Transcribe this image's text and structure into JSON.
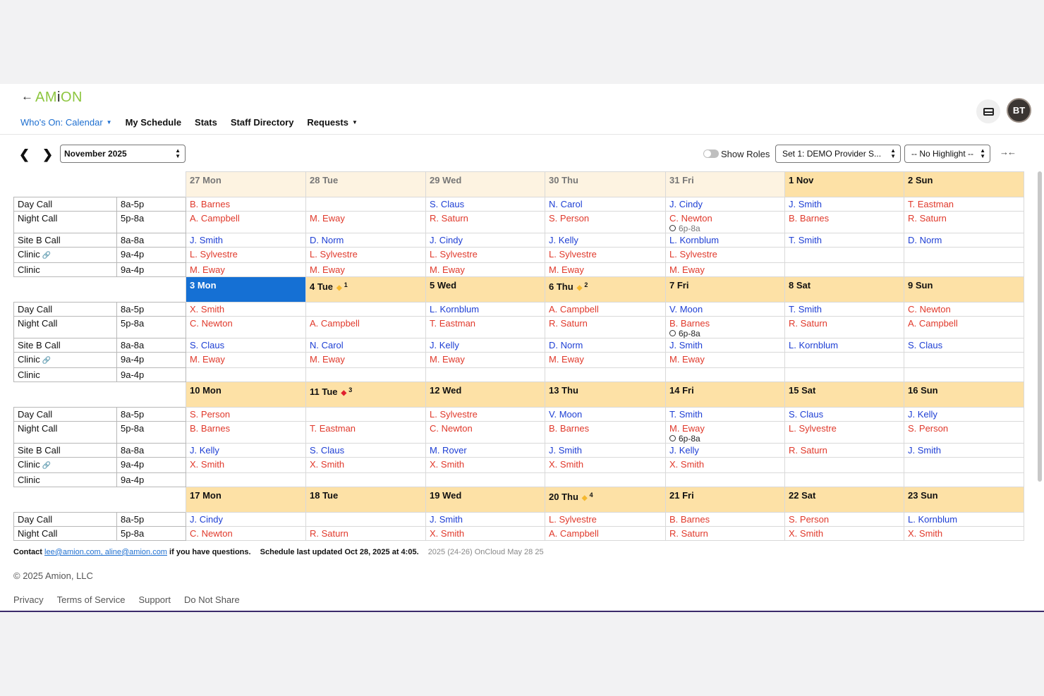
{
  "app": {
    "back_arrow": "←",
    "logo_a": "AM",
    "logo_i": "i",
    "logo_b": "ON",
    "avatar_initials": "BT",
    "colors": {
      "accent": "#1e6fd0",
      "date_header": "#fde1a6",
      "today": "#1570d4",
      "red_name": "#e0392b",
      "blue_name": "#1e3fd4",
      "logo": "#8dc63f"
    }
  },
  "nav": {
    "items": [
      {
        "label": "Who's On: Calendar",
        "caret": "▼",
        "active": true
      },
      {
        "label": "My Schedule"
      },
      {
        "label": "Stats"
      },
      {
        "label": "Staff Directory"
      },
      {
        "label": "Requests",
        "caret": "▼"
      }
    ],
    "icons": [
      "card-icon",
      "avatar"
    ]
  },
  "toolbar": {
    "prev": "‹",
    "next": "›",
    "month": "November 2025",
    "show_roles_label": "Show Roles",
    "show_roles_on": false,
    "set_select": "Set 1: DEMO Provider S...",
    "highlight_select": "-- No Highlight --",
    "collapse_icon": "→←"
  },
  "calendar": {
    "weeks": [
      {
        "days": [
          {
            "label": "27 Mon",
            "faded": true
          },
          {
            "label": "28 Tue",
            "faded": true
          },
          {
            "label": "29 Wed",
            "faded": true
          },
          {
            "label": "30 Thu",
            "faded": true
          },
          {
            "label": "31 Fri",
            "faded": true
          },
          {
            "label": "1 Nov"
          },
          {
            "label": "2 Sun"
          }
        ],
        "rows": [
          {
            "label": "Day Call",
            "time": "8a-5p",
            "cells": [
              {
                "n": "B. Barnes",
                "c": "red"
              },
              {
                "n": ""
              },
              {
                "n": "S. Claus",
                "c": "blue"
              },
              {
                "n": "N. Carol",
                "c": "blue"
              },
              {
                "n": "J. Cindy",
                "c": "blue"
              },
              {
                "n": "J. Smith",
                "c": "blue"
              },
              {
                "n": "T. Eastman",
                "c": "red"
              }
            ]
          },
          {
            "label": "Night Call",
            "time": "5p-8a",
            "tall": true,
            "cells": [
              {
                "n": "A. Campbell",
                "c": "red"
              },
              {
                "n": "M. Eway",
                "c": "red"
              },
              {
                "n": "R. Saturn",
                "c": "red"
              },
              {
                "n": "S. Person",
                "c": "red"
              },
              {
                "n": "C. Newton",
                "c": "red",
                "note": "6p-8a",
                "note_faded": true
              },
              {
                "n": "B. Barnes",
                "c": "red"
              },
              {
                "n": "R. Saturn",
                "c": "red"
              }
            ]
          },
          {
            "label": "Site B Call",
            "time": "8a-8a",
            "cells": [
              {
                "n": "J. Smith",
                "c": "blue"
              },
              {
                "n": "D. Norm",
                "c": "blue"
              },
              {
                "n": "J. Cindy",
                "c": "blue"
              },
              {
                "n": "J. Kelly",
                "c": "blue"
              },
              {
                "n": "L. Kornblum",
                "c": "blue"
              },
              {
                "n": "T. Smith",
                "c": "blue"
              },
              {
                "n": "D. Norm",
                "c": "blue"
              }
            ]
          },
          {
            "label": "Clinic",
            "time": "9a-4p",
            "link": true,
            "cells": [
              {
                "n": "L. Sylvestre",
                "c": "red"
              },
              {
                "n": "L. Sylvestre",
                "c": "red"
              },
              {
                "n": "L. Sylvestre",
                "c": "red"
              },
              {
                "n": "L. Sylvestre",
                "c": "red"
              },
              {
                "n": "L. Sylvestre",
                "c": "red"
              },
              {
                "n": ""
              },
              {
                "n": ""
              }
            ]
          },
          {
            "label": "Clinic",
            "time": "9a-4p",
            "cells": [
              {
                "n": "M. Eway",
                "c": "red"
              },
              {
                "n": "M. Eway",
                "c": "red"
              },
              {
                "n": "M. Eway",
                "c": "red"
              },
              {
                "n": "M. Eway",
                "c": "red"
              },
              {
                "n": "M. Eway",
                "c": "red"
              },
              {
                "n": ""
              },
              {
                "n": ""
              }
            ]
          }
        ]
      },
      {
        "days": [
          {
            "label": "3 Mon",
            "today": true
          },
          {
            "label": "4 Tue",
            "diamond": "yellow",
            "sup": "1"
          },
          {
            "label": "5 Wed"
          },
          {
            "label": "6 Thu",
            "diamond": "yellow",
            "sup": "2"
          },
          {
            "label": "7 Fri"
          },
          {
            "label": "8 Sat"
          },
          {
            "label": "9 Sun"
          }
        ],
        "rows": [
          {
            "label": "Day Call",
            "time": "8a-5p",
            "cells": [
              {
                "n": "X. Smith",
                "c": "red"
              },
              {
                "n": ""
              },
              {
                "n": "L. Kornblum",
                "c": "blue"
              },
              {
                "n": "A. Campbell",
                "c": "red"
              },
              {
                "n": "V. Moon",
                "c": "blue"
              },
              {
                "n": "T. Smith",
                "c": "blue"
              },
              {
                "n": "C. Newton",
                "c": "red"
              }
            ]
          },
          {
            "label": "Night Call",
            "time": "5p-8a",
            "tall": true,
            "cells": [
              {
                "n": "C. Newton",
                "c": "red"
              },
              {
                "n": "A. Campbell",
                "c": "red"
              },
              {
                "n": "T. Eastman",
                "c": "red"
              },
              {
                "n": "R. Saturn",
                "c": "red"
              },
              {
                "n": "B. Barnes",
                "c": "red",
                "note": "6p-8a"
              },
              {
                "n": "R. Saturn",
                "c": "red"
              },
              {
                "n": "A. Campbell",
                "c": "red"
              }
            ]
          },
          {
            "label": "Site B Call",
            "time": "8a-8a",
            "cells": [
              {
                "n": "S. Claus",
                "c": "blue"
              },
              {
                "n": "N. Carol",
                "c": "blue"
              },
              {
                "n": "J. Kelly",
                "c": "blue"
              },
              {
                "n": "D. Norm",
                "c": "blue"
              },
              {
                "n": "J. Smith",
                "c": "blue"
              },
              {
                "n": "L. Kornblum",
                "c": "blue"
              },
              {
                "n": "S. Claus",
                "c": "blue"
              }
            ]
          },
          {
            "label": "Clinic",
            "time": "9a-4p",
            "link": true,
            "cells": [
              {
                "n": "M. Eway",
                "c": "red"
              },
              {
                "n": "M. Eway",
                "c": "red"
              },
              {
                "n": "M. Eway",
                "c": "red"
              },
              {
                "n": "M. Eway",
                "c": "red"
              },
              {
                "n": "M. Eway",
                "c": "red"
              },
              {
                "n": ""
              },
              {
                "n": ""
              }
            ]
          },
          {
            "label": "Clinic",
            "time": "9a-4p",
            "cells": [
              {
                "n": ""
              },
              {
                "n": ""
              },
              {
                "n": ""
              },
              {
                "n": ""
              },
              {
                "n": ""
              },
              {
                "n": ""
              },
              {
                "n": ""
              }
            ]
          }
        ]
      },
      {
        "days": [
          {
            "label": "10 Mon"
          },
          {
            "label": "11 Tue",
            "diamond": "red",
            "sup": "3"
          },
          {
            "label": "12 Wed"
          },
          {
            "label": "13 Thu"
          },
          {
            "label": "14 Fri"
          },
          {
            "label": "15 Sat"
          },
          {
            "label": "16 Sun"
          }
        ],
        "rows": [
          {
            "label": "Day Call",
            "time": "8a-5p",
            "cells": [
              {
                "n": "S. Person",
                "c": "red"
              },
              {
                "n": ""
              },
              {
                "n": "L. Sylvestre",
                "c": "red"
              },
              {
                "n": "V. Moon",
                "c": "blue"
              },
              {
                "n": "T. Smith",
                "c": "blue"
              },
              {
                "n": "S. Claus",
                "c": "blue"
              },
              {
                "n": "J. Kelly",
                "c": "blue"
              }
            ]
          },
          {
            "label": "Night Call",
            "time": "5p-8a",
            "tall": true,
            "cells": [
              {
                "n": "B. Barnes",
                "c": "red"
              },
              {
                "n": "T. Eastman",
                "c": "red"
              },
              {
                "n": "C. Newton",
                "c": "red"
              },
              {
                "n": "B. Barnes",
                "c": "red"
              },
              {
                "n": "M. Eway",
                "c": "red",
                "note": "6p-8a"
              },
              {
                "n": "L. Sylvestre",
                "c": "red"
              },
              {
                "n": "S. Person",
                "c": "red"
              }
            ]
          },
          {
            "label": "Site B Call",
            "time": "8a-8a",
            "cells": [
              {
                "n": "J. Kelly",
                "c": "blue"
              },
              {
                "n": "S. Claus",
                "c": "blue"
              },
              {
                "n": "M. Rover",
                "c": "blue"
              },
              {
                "n": "J. Smith",
                "c": "blue"
              },
              {
                "n": "J. Kelly",
                "c": "blue"
              },
              {
                "n": "R. Saturn",
                "c": "red"
              },
              {
                "n": "J. Smith",
                "c": "blue"
              }
            ]
          },
          {
            "label": "Clinic",
            "time": "9a-4p",
            "link": true,
            "cells": [
              {
                "n": "X. Smith",
                "c": "red"
              },
              {
                "n": "X. Smith",
                "c": "red"
              },
              {
                "n": "X. Smith",
                "c": "red"
              },
              {
                "n": "X. Smith",
                "c": "red"
              },
              {
                "n": "X. Smith",
                "c": "red"
              },
              {
                "n": ""
              },
              {
                "n": ""
              }
            ]
          },
          {
            "label": "Clinic",
            "time": "9a-4p",
            "cells": [
              {
                "n": ""
              },
              {
                "n": ""
              },
              {
                "n": ""
              },
              {
                "n": ""
              },
              {
                "n": ""
              },
              {
                "n": ""
              },
              {
                "n": ""
              }
            ]
          }
        ]
      },
      {
        "days": [
          {
            "label": "17 Mon"
          },
          {
            "label": "18 Tue"
          },
          {
            "label": "19 Wed"
          },
          {
            "label": "20 Thu",
            "diamond": "yellow",
            "sup": "4"
          },
          {
            "label": "21 Fri"
          },
          {
            "label": "22 Sat"
          },
          {
            "label": "23 Sun"
          }
        ],
        "rows": [
          {
            "label": "Day Call",
            "time": "8a-5p",
            "cells": [
              {
                "n": "J. Cindy",
                "c": "blue"
              },
              {
                "n": ""
              },
              {
                "n": "J. Smith",
                "c": "blue"
              },
              {
                "n": "L. Sylvestre",
                "c": "red"
              },
              {
                "n": "B. Barnes",
                "c": "red"
              },
              {
                "n": "S. Person",
                "c": "red"
              },
              {
                "n": "L. Kornblum",
                "c": "blue"
              }
            ]
          },
          {
            "label": "Night Call",
            "time": "5p-8a",
            "cells": [
              {
                "n": "C. Newton",
                "c": "red"
              },
              {
                "n": "R. Saturn",
                "c": "red"
              },
              {
                "n": "X. Smith",
                "c": "red"
              },
              {
                "n": "A. Campbell",
                "c": "red"
              },
              {
                "n": "R. Saturn",
                "c": "red"
              },
              {
                "n": "X. Smith",
                "c": "red"
              },
              {
                "n": "X. Smith",
                "c": "red"
              }
            ]
          }
        ]
      }
    ]
  },
  "footer": {
    "contact_prefix": "Contact",
    "contact_emails": "lee@amion.com, aline@amion.com",
    "contact_suffix": "if you have questions.",
    "updated": "Schedule last updated Oct 28, 2025 at 4:05.",
    "version": "2025 (24-26)  OnCloud  May 28 25",
    "copyright": "© 2025 Amion, LLC",
    "links": [
      "Privacy",
      "Terms of Service",
      "Support",
      "Do Not Share"
    ]
  }
}
